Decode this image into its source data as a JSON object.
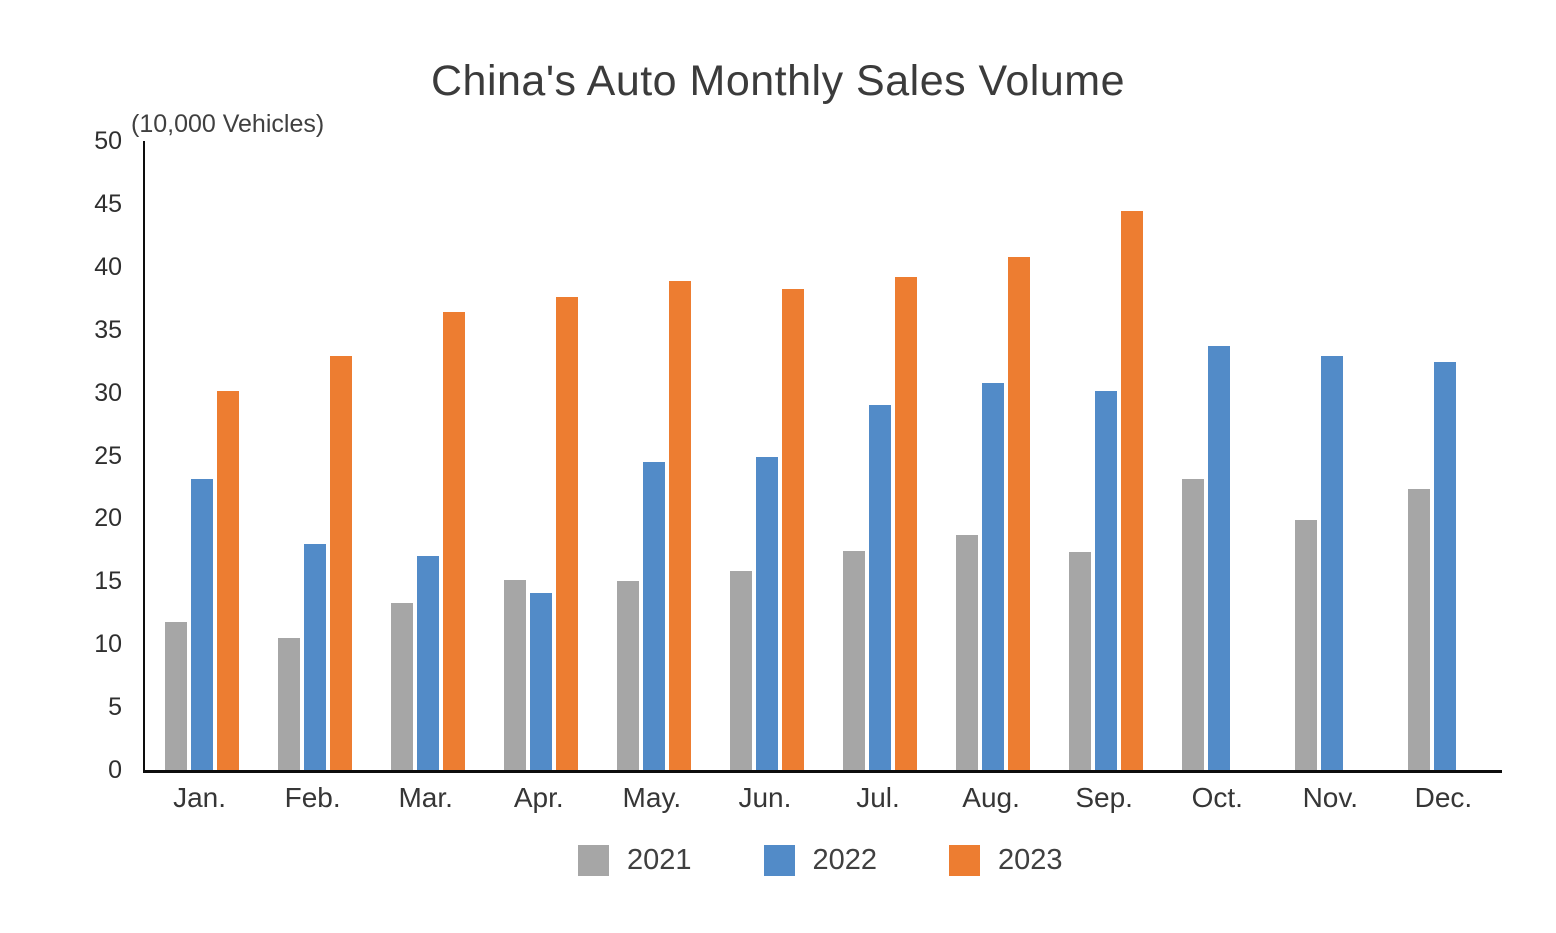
{
  "title": "China's Auto Monthly Sales Volume",
  "unit_label": "(10,000 Vehicles)",
  "colors": {
    "series_2021": "#A6A6A6",
    "series_2022": "#528BC8",
    "series_2023": "#ED7D31",
    "axis": "#0d0d0d",
    "text": "#3b3b3b"
  },
  "chart_data": {
    "type": "bar",
    "title": "China's Auto Monthly Sales Volume",
    "unit": "(10,000 Vehicles)",
    "categories": [
      "Jan.",
      "Feb.",
      "Mar.",
      "Apr.",
      "May.",
      "Jun.",
      "Jul.",
      "Aug.",
      "Sep.",
      "Oct.",
      "Nov.",
      "Dec."
    ],
    "series": [
      {
        "name": "2021",
        "color": "#A6A6A6",
        "values": [
          11.8,
          10.5,
          13.3,
          15.1,
          15.0,
          15.8,
          17.4,
          18.7,
          17.3,
          23.1,
          19.9,
          22.3
        ]
      },
      {
        "name": "2022",
        "color": "#528BC8",
        "values": [
          23.1,
          18.0,
          17.0,
          14.1,
          24.5,
          24.9,
          29.0,
          30.8,
          30.1,
          33.7,
          32.9,
          32.4
        ]
      },
      {
        "name": "2023",
        "color": "#ED7D31",
        "values": [
          30.1,
          32.9,
          36.4,
          37.6,
          38.9,
          38.2,
          39.2,
          40.8,
          44.4,
          null,
          null,
          null
        ]
      }
    ],
    "ylim": [
      0,
      50
    ],
    "ytick_step": 5,
    "grid": false,
    "legend_position": "bottom"
  }
}
